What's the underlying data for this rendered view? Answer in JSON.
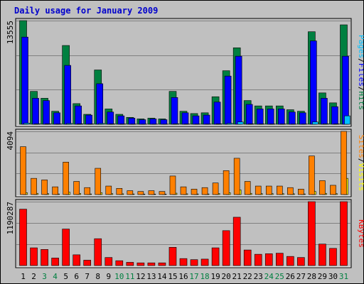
{
  "title": "Daily usage for January 2009",
  "colors": {
    "background": "#c0c0c0",
    "panel": "#c0c0c0",
    "title": "#0000cc",
    "hits": "#008040",
    "files": "#0000ff",
    "pages": "#00c0ff",
    "visits": "#ffff00",
    "sites": "#ff8000",
    "kbytes": "#ff0000",
    "weekday_label": "#000000",
    "weekend_label": "#008040",
    "gridline": "#808080"
  },
  "chart_data": [
    {
      "type": "bar",
      "panel": "top",
      "ymax_label": "13555",
      "ylim": [
        0,
        13555
      ],
      "categories": [
        "1",
        "2",
        "3",
        "4",
        "5",
        "6",
        "7",
        "8",
        "9",
        "10",
        "11",
        "12",
        "13",
        "14",
        "15",
        "16",
        "17",
        "18",
        "19",
        "20",
        "21",
        "22",
        "23",
        "24",
        "25",
        "26",
        "27",
        "28",
        "29",
        "30",
        "31"
      ],
      "weekend_days": [
        "3",
        "4",
        "10",
        "11",
        "17",
        "18",
        "24",
        "25",
        "31"
      ],
      "series": [
        {
          "name": "Hits",
          "values": [
            13555,
            4300,
            3400,
            1700,
            10300,
            2700,
            1300,
            7100,
            2000,
            1300,
            900,
            700,
            800,
            700,
            4300,
            1700,
            1400,
            1500,
            3600,
            7000,
            10000,
            3100,
            2400,
            2400,
            2400,
            1900,
            1700,
            12100,
            4100,
            2800,
            13000
          ]
        },
        {
          "name": "Files",
          "values": [
            11400,
            3400,
            3100,
            1500,
            7700,
            2400,
            1200,
            5300,
            1600,
            1100,
            800,
            600,
            700,
            600,
            3500,
            1500,
            1100,
            1200,
            2900,
            6300,
            8900,
            2600,
            2000,
            2000,
            2000,
            1600,
            1500,
            10900,
            3400,
            2300,
            8900
          ]
        },
        {
          "name": "Pages",
          "values": [
            150,
            70,
            60,
            40,
            100,
            60,
            40,
            100,
            50,
            40,
            30,
            20,
            20,
            20,
            70,
            40,
            30,
            30,
            60,
            120,
            300,
            50,
            40,
            40,
            40,
            30,
            30,
            300,
            70,
            50,
            1100
          ]
        }
      ],
      "legend": [
        "Pages",
        "/",
        "Files",
        "/",
        "Hits"
      ]
    },
    {
      "type": "bar",
      "panel": "middle",
      "ymax_label": "4094",
      "ylim": [
        0,
        4094
      ],
      "categories": [
        "1",
        "2",
        "3",
        "4",
        "5",
        "6",
        "7",
        "8",
        "9",
        "10",
        "11",
        "12",
        "13",
        "14",
        "15",
        "16",
        "17",
        "18",
        "19",
        "20",
        "21",
        "22",
        "23",
        "24",
        "25",
        "26",
        "27",
        "28",
        "29",
        "30",
        "31"
      ],
      "series": [
        {
          "name": "Visits",
          "values": [
            120,
            80,
            60,
            40,
            150,
            70,
            40,
            120,
            60,
            50,
            40,
            30,
            30,
            30,
            90,
            50,
            40,
            40,
            70,
            120,
            300,
            80,
            60,
            60,
            60,
            50,
            40,
            200,
            80,
            60,
            1050
          ]
        },
        {
          "name": "Sites",
          "values": [
            3100,
            1050,
            950,
            500,
            2100,
            850,
            450,
            1700,
            550,
            400,
            250,
            200,
            250,
            200,
            1200,
            500,
            350,
            450,
            750,
            1550,
            2350,
            850,
            550,
            550,
            550,
            450,
            350,
            2500,
            900,
            600,
            4094
          ]
        }
      ],
      "legend": [
        "Sites",
        "/",
        "Visits"
      ]
    },
    {
      "type": "bar",
      "panel": "bottom",
      "ymax_label": "1190287",
      "ylim": [
        0,
        1190287
      ],
      "categories": [
        "1",
        "2",
        "3",
        "4",
        "5",
        "6",
        "7",
        "8",
        "9",
        "10",
        "11",
        "12",
        "13",
        "14",
        "15",
        "16",
        "17",
        "18",
        "19",
        "20",
        "21",
        "22",
        "23",
        "24",
        "25",
        "26",
        "27",
        "28",
        "29",
        "30",
        "31"
      ],
      "series": [
        {
          "name": "KBytes",
          "values": [
            1050000,
            330000,
            300000,
            140000,
            680000,
            200000,
            100000,
            500000,
            150000,
            90000,
            60000,
            50000,
            50000,
            50000,
            340000,
            130000,
            110000,
            120000,
            330000,
            650000,
            900000,
            290000,
            210000,
            220000,
            230000,
            170000,
            150000,
            1190287,
            400000,
            320000,
            1190287
          ]
        }
      ],
      "legend": [
        "KBytes"
      ]
    }
  ]
}
